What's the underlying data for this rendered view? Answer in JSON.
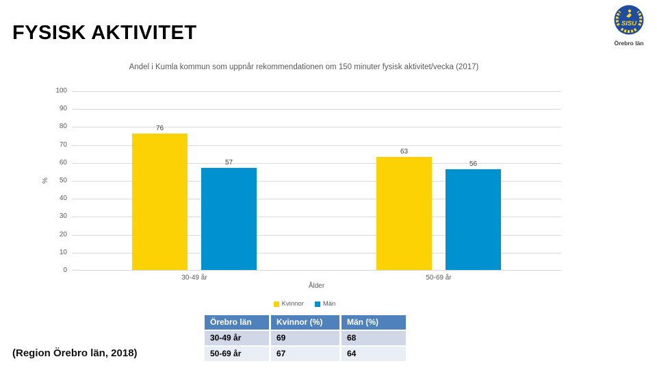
{
  "slide": {
    "title": "FYSISK AKTIVITET",
    "footer": "(Region Örebro län, 2018)"
  },
  "logo": {
    "text": "SISU",
    "caption": "Örebro län",
    "circle_color": "#1e4ca1",
    "accent_color": "#ffd520"
  },
  "chart_data": {
    "type": "bar",
    "title": "Andel i Kumla kommun som uppnår rekommendationen om 150 minuter fysisk aktivitet/vecka (2017)",
    "categories": [
      "30-49 år",
      "50-69 år"
    ],
    "series": [
      {
        "name": "Kvinnor",
        "color": "#FDD205",
        "values": [
          76,
          63
        ]
      },
      {
        "name": "Män",
        "color": "#0092D0",
        "values": [
          57,
          56
        ]
      }
    ],
    "xlabel": "Ålder",
    "ylabel": "%",
    "ylim": [
      0,
      100
    ],
    "yticks": [
      0,
      10,
      20,
      30,
      40,
      50,
      60,
      70,
      80,
      90,
      100
    ],
    "grid": true,
    "legend_position": "bottom"
  },
  "table": {
    "headers": [
      "Örebro län",
      "Kvinnor (%)",
      "Män (%)"
    ],
    "rows": [
      [
        "30-49 år",
        "69",
        "68"
      ],
      [
        "50-69 år",
        "67",
        "64"
      ]
    ],
    "header_bg": "#4F81BD",
    "row_bg_odd": "#D0D8E8",
    "row_bg_even": "#E9EDF4"
  }
}
